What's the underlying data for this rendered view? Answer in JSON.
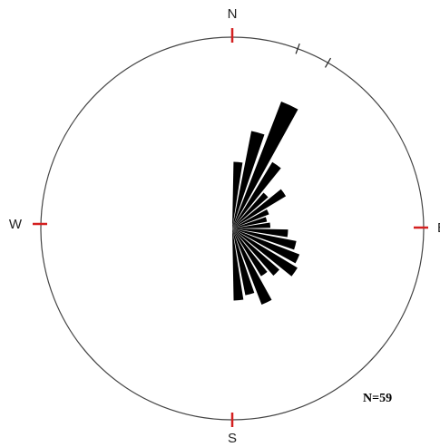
{
  "chart_data": {
    "type": "rose",
    "title": "",
    "count_label": "N=59",
    "cardinals": [
      {
        "label": "N",
        "angle": 0
      },
      {
        "label": "E",
        "angle": 90
      },
      {
        "label": "S",
        "angle": 180
      },
      {
        "label": "W",
        "angle": 270
      }
    ],
    "bin_width_deg": 10,
    "radial_max": 1,
    "bins": [
      {
        "from": 0,
        "to": 10,
        "value": 0.49
      },
      {
        "from": 10,
        "to": 20,
        "value": 0.73
      },
      {
        "from": 20,
        "to": 30,
        "value": 1.0
      },
      {
        "from": 30,
        "to": 40,
        "value": 0.57
      },
      {
        "from": 40,
        "to": 50,
        "value": 0.35
      },
      {
        "from": 50,
        "to": 60,
        "value": 0.46
      },
      {
        "from": 60,
        "to": 70,
        "value": 0.29
      },
      {
        "from": 70,
        "to": 80,
        "value": 0.26
      },
      {
        "from": 80,
        "to": 90,
        "value": 0.28
      },
      {
        "from": 90,
        "to": 100,
        "value": 0.41
      },
      {
        "from": 100,
        "to": 110,
        "value": 0.48
      },
      {
        "from": 110,
        "to": 120,
        "value": 0.53
      },
      {
        "from": 120,
        "to": 130,
        "value": 0.56
      },
      {
        "from": 130,
        "to": 140,
        "value": 0.46
      },
      {
        "from": 140,
        "to": 150,
        "value": 0.41
      },
      {
        "from": 150,
        "to": 160,
        "value": 0.6
      },
      {
        "from": 160,
        "to": 170,
        "value": 0.5
      },
      {
        "from": 170,
        "to": 180,
        "value": 0.53
      }
    ],
    "colors": {
      "petal": "#000000",
      "circle": "#444444",
      "tick": "#d42020",
      "background": "#ffffff"
    }
  }
}
